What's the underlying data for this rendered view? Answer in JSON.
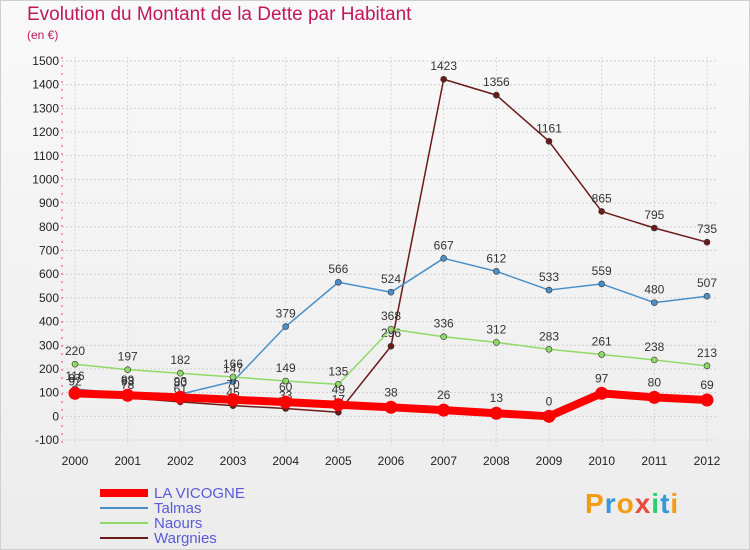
{
  "chart_data": {
    "type": "line",
    "title": "Evolution du Montant de la Dette par Habitant",
    "subtitle": "(en €)",
    "xlabel": "",
    "ylabel": "",
    "ylim": [
      -100,
      1500
    ],
    "yticks": [
      -100,
      0,
      100,
      200,
      300,
      400,
      500,
      600,
      700,
      800,
      900,
      1000,
      1100,
      1200,
      1300,
      1400,
      1500
    ],
    "categories": [
      "2000",
      "2001",
      "2002",
      "2003",
      "2004",
      "2005",
      "2006",
      "2007",
      "2008",
      "2009",
      "2010",
      "2011",
      "2012"
    ],
    "legend_position": "bottom-left",
    "series": [
      {
        "name": "Wargnies",
        "color": "#6b1a1a",
        "values": [
          92,
          78,
          61,
          45,
          33,
          17,
          296,
          1423,
          1356,
          1161,
          865,
          795,
          735
        ],
        "labels": [
          "92",
          "78",
          "61",
          "45",
          "33",
          "17",
          "296",
          "1423",
          "1356",
          "1161",
          "865",
          "795",
          "735"
        ]
      },
      {
        "name": "Talmas",
        "color": "#4a8fc9",
        "values": [
          116,
          93,
          93,
          147,
          379,
          566,
          524,
          667,
          612,
          533,
          559,
          480,
          507
        ],
        "labels": [
          "116",
          "93",
          "93",
          "147",
          "379",
          "566",
          "524",
          "667",
          "612",
          "533",
          "559",
          "480",
          "507"
        ]
      },
      {
        "name": "Naours",
        "color": "#8fd966",
        "values": [
          220,
          197,
          182,
          166,
          149,
          135,
          368,
          336,
          312,
          283,
          261,
          238,
          213
        ],
        "labels": [
          "220",
          "197",
          "182",
          "166",
          "149",
          "135",
          "368",
          "336",
          "312",
          "283",
          "261",
          "238",
          "213"
        ]
      },
      {
        "name": "LA VICOGNE",
        "color": "#ff0000",
        "values": [
          97,
          89,
          80,
          70,
          60,
          49,
          38,
          26,
          13,
          0,
          97,
          80,
          69
        ],
        "labels": [
          "97",
          "89",
          "80",
          "70",
          "60",
          "49",
          "38",
          "26",
          "13",
          "0",
          "97",
          "80",
          "69"
        ]
      }
    ],
    "legend_order": [
      "LA VICOGNE",
      "Talmas",
      "Naours",
      "Wargnies"
    ]
  },
  "brand": {
    "logo_text": "Proxiti",
    "letters": [
      "P",
      "r",
      "o",
      "x",
      "i",
      "t",
      "i"
    ],
    "letter_colors": [
      "#f39c12",
      "#3498db",
      "#f39c12",
      "#e74c3c",
      "#2ecc71",
      "#3498db",
      "#f39c12"
    ]
  }
}
